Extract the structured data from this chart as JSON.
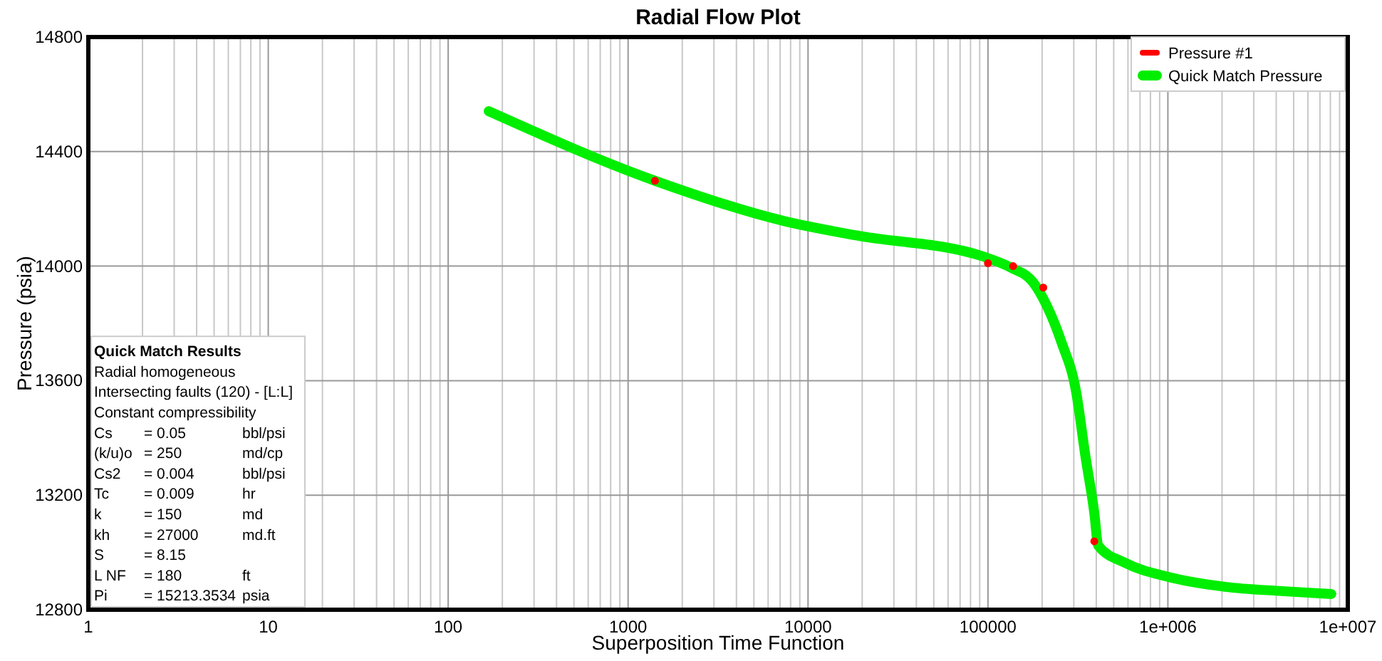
{
  "chart_data": {
    "type": "line",
    "title": "Radial Flow Plot",
    "xlabel": "Superposition Time Function",
    "ylabel": "Pressure (psia)",
    "log": "x",
    "grid": true,
    "legend": "top right",
    "xlim": [
      1,
      10000000
    ],
    "xticks": [
      1,
      10,
      100,
      1000,
      10000,
      100000,
      {
        "value": 1000000,
        "label": "1e+006"
      },
      {
        "value": 10000000,
        "label": "1e+007"
      }
    ],
    "ylim": [
      12800,
      14800
    ],
    "yticks": [
      12800,
      13200,
      13600,
      14000,
      14400,
      14800
    ],
    "series": [
      {
        "name": "Pressure #1",
        "type": "scatter",
        "marker": "circle",
        "color": "#ff0000",
        "x": [
          1410,
          100000,
          138000,
          203000,
          390000
        ],
        "values": [
          14298,
          14010,
          14000,
          13925,
          13039
        ]
      },
      {
        "name": "Quick Match Pressure",
        "line_style": "solid",
        "color": "#00ee00",
        "x": [
          168,
          1413,
          7300,
          18200,
          93600,
          135000,
          178000,
          213000,
          256000,
          309000,
          348000,
          390000,
          410000,
          577000,
          1000000,
          2080000,
          4300000,
          8100000
        ],
        "values": [
          14541,
          14298,
          14158,
          14108,
          14034,
          13994,
          13944,
          13860,
          13735,
          13561,
          13337,
          13138,
          13024,
          12964,
          12915,
          12880,
          12865,
          12855
        ]
      }
    ],
    "annotations": [
      "Quick Match Results",
      "Radial homogeneous",
      "Intersecting faults (120) - [L:L]",
      "Constant compressibility",
      "Cs\t= 0.05\tbbl/psi",
      "(k/u)o\t= 250\tmd/cp",
      "Cs2\t= 0.004\tbbl/psi",
      "Tc\t= 0.009\thr",
      "k\t= 150\tmd",
      "kh\t= 27000\tmd.ft",
      "S\t= 8.15",
      "L NF\t= 180\tft",
      "Pi\t= 15213.3534\tpsia"
    ]
  }
}
